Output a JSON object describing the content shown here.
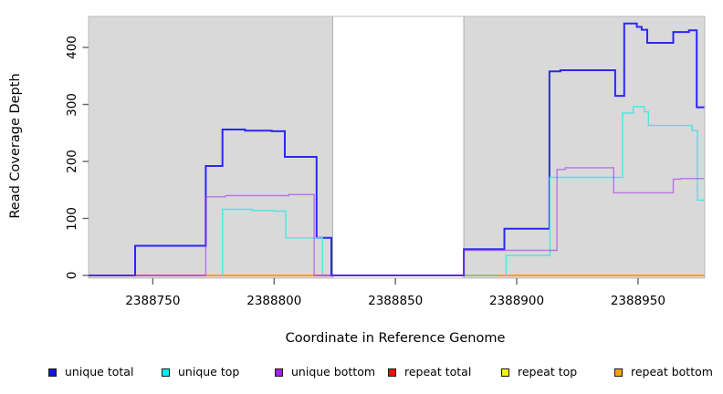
{
  "axes": {
    "x_label": "Coordinate in Reference Genome",
    "y_label": "Read Coverage Depth",
    "x_ticks": [
      2388750,
      2388800,
      2388850,
      2388900,
      2388950
    ],
    "y_ticks": [
      0,
      100,
      200,
      300,
      400
    ]
  },
  "legend": {
    "swatch_border": "#1a1a1a",
    "items": [
      {
        "label": "unique total",
        "fill": "#1414e8"
      },
      {
        "label": "unique top",
        "fill": "#00f0f0"
      },
      {
        "label": "unique bottom",
        "fill": "#a020f0"
      },
      {
        "label": "repeat total",
        "fill": "#ee1111"
      },
      {
        "label": "repeat top",
        "fill": "#f2f20c"
      },
      {
        "label": "repeat bottom",
        "fill": "#f2a30c"
      }
    ]
  },
  "chart_data": {
    "type": "line",
    "step": true,
    "title": "",
    "xlabel": "Coordinate in Reference Genome",
    "ylabel": "Read Coverage Depth",
    "xlim": [
      2388723.5,
      2388977.5
    ],
    "ylim": [
      0,
      454
    ],
    "grid": false,
    "legend_position": "bottom",
    "background_bands": [
      {
        "x0": 2388723.5,
        "x1": 2388824.2,
        "fill": "#d9d9d9",
        "meaning": "covered region"
      },
      {
        "x0": 2388824.2,
        "x1": 2388878.2,
        "fill": "#ffffff",
        "meaning": "gap with no reads"
      },
      {
        "x0": 2388878.2,
        "x1": 2388977.5,
        "fill": "#d9d9d9",
        "meaning": "covered region"
      }
    ],
    "band_border": "#ababab",
    "series": [
      {
        "name": "repeat total",
        "color": "#d45c66",
        "width": 1.4,
        "opacity": 1,
        "segments": [
          {
            "start_zero": false,
            "points": [
              [
                2388742.7,
                0
              ]
            ],
            "end": 2388823.6
          },
          {
            "start_zero": false,
            "points": [
              [
                2388878.2,
                0
              ]
            ],
            "end": 2388977.3
          }
        ]
      },
      {
        "name": "repeat top",
        "color": "#8cc878",
        "width": 1.4,
        "opacity": 1,
        "note": "value 0; renders green where unique-top zero line overlaps it",
        "segments": [
          {
            "start_zero": false,
            "points": [
              [
                2388878.2,
                0
              ]
            ],
            "end": 2388892.5
          }
        ]
      },
      {
        "name": "repeat bottom",
        "color": "#ff9e1b",
        "width": 1.7,
        "opacity": 1,
        "segments": [
          {
            "start_zero": false,
            "points": [
              [
                2388771.8,
                0
              ]
            ],
            "end": 2388817.5
          },
          {
            "start_zero": false,
            "points": [
              [
                2388892.5,
                0
              ]
            ],
            "end": 2388977.3
          }
        ]
      },
      {
        "name": "unique total",
        "color": "#2a28f5",
        "width": 2,
        "opacity": 1,
        "segments": [
          {
            "start_zero": false,
            "points": [
              [
                2388723.5,
                0
              ],
              [
                2388742.7,
                52
              ],
              [
                2388771.8,
                192
              ],
              [
                2388778.7,
                256
              ],
              [
                2388788,
                254
              ],
              [
                2388799,
                253
              ],
              [
                2388804.4,
                208
              ],
              [
                2388817.5,
                66
              ],
              [
                2388823.6,
                0
              ],
              [
                2388878.2,
                46
              ],
              [
                2388894.9,
                82
              ],
              [
                2388913.5,
                358
              ],
              [
                2388918,
                360
              ],
              [
                2388940.6,
                315
              ],
              [
                2388944.3,
                442
              ],
              [
                2388949.5,
                436
              ],
              [
                2388951.5,
                431
              ],
              [
                2388953.8,
                408
              ],
              [
                2388964.5,
                427
              ],
              [
                2388971,
                430
              ],
              [
                2388974.2,
                295
              ]
            ],
            "end": 2388977.3
          }
        ]
      },
      {
        "name": "unique top",
        "color": "#4fe3e3",
        "width": 1.4,
        "opacity": 1,
        "segments": [
          {
            "start_zero": true,
            "points": [
              [
                2388778.7,
                116
              ],
              [
                2388791,
                114
              ],
              [
                2388800,
                113
              ],
              [
                2388804.8,
                66
              ],
              [
                2388819.9,
                0
              ]
            ],
            "end": 2388819.9
          },
          {
            "start_zero": true,
            "points": [
              [
                2388895.6,
                35
              ],
              [
                2388913.7,
                172
              ],
              [
                2388943.6,
                285
              ],
              [
                2388948,
                296
              ],
              [
                2388952.6,
                287
              ],
              [
                2388954.3,
                263
              ],
              [
                2388972.3,
                254
              ],
              [
                2388974.5,
                132
              ]
            ],
            "end": 2388977.3
          }
        ]
      },
      {
        "name": "unique bottom",
        "color": "#a020f0",
        "width": 1.4,
        "opacity": 0.55,
        "segments": [
          {
            "start_zero": false,
            "points": [
              [
                2388723.5,
                0
              ],
              [
                2388771.8,
                138
              ],
              [
                2388780,
                140
              ],
              [
                2388806,
                142
              ],
              [
                2388816.5,
                0
              ],
              [
                2388878.2,
                44
              ],
              [
                2388916.6,
                186
              ],
              [
                2388920,
                189
              ],
              [
                2388940,
                145
              ],
              [
                2388964.5,
                169
              ],
              [
                2388967.5,
                170
              ]
            ],
            "end": 2388977.3
          }
        ]
      }
    ]
  }
}
